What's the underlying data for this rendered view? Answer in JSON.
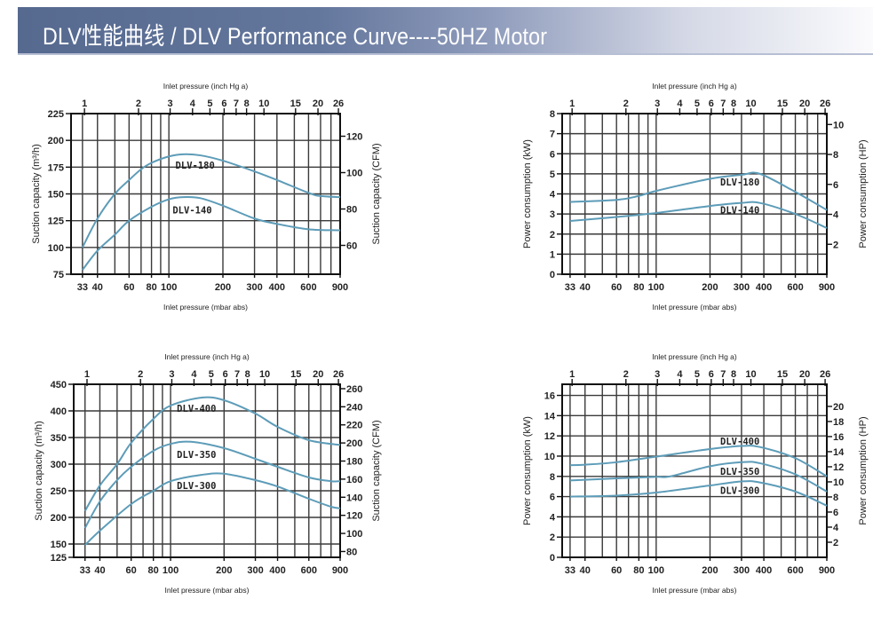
{
  "header": {
    "title": "DLV性能曲线 / DLV Performance Curve----50HZ Motor"
  },
  "colors": {
    "curve": "#5d9cb8",
    "grid": "#3a3a3a",
    "frame": "#111111",
    "banner": "#5a6d94"
  },
  "chart_data": [
    {
      "id": "capacity-small",
      "type": "line",
      "xscale": "log",
      "xlim": [
        28.5,
        900
      ],
      "ylim": [
        75,
        225
      ],
      "xlabel": "Inlet pressure (mbar abs)",
      "x2label": "Inlet pressure (inch Hg a)",
      "ylabel": "Suction capacity (m³/h)",
      "y2label": "Suction capacity (CFM)",
      "xticks": [
        "33",
        "40",
        "60",
        "80",
        "100",
        "200",
        "300",
        "400",
        "600",
        "900"
      ],
      "x2ticks": [
        "1",
        "2",
        "3",
        "4",
        "5",
        "6",
        "7",
        "8",
        "10",
        "15",
        "20",
        "26"
      ],
      "yticks": [
        "75",
        "100",
        "125",
        "150",
        "175",
        "200",
        "225"
      ],
      "y2ticks": [
        "60",
        "80",
        "100",
        "120"
      ],
      "y2factor": 0.5886,
      "grid": true,
      "series": [
        {
          "name": "DLV-180",
          "label_at": [
            140,
            177
          ],
          "x": [
            33,
            40,
            50,
            60,
            70,
            80,
            100,
            120,
            150,
            200,
            300,
            400,
            600,
            700,
            900
          ],
          "y": [
            100,
            127,
            150,
            163,
            173,
            179,
            185,
            187,
            186,
            181,
            171,
            163,
            151,
            148,
            147
          ]
        },
        {
          "name": "DLV-140",
          "label_at": [
            135,
            135
          ],
          "x": [
            33,
            40,
            50,
            60,
            80,
            100,
            120,
            150,
            200,
            300,
            400,
            600,
            900
          ],
          "y": [
            79,
            97,
            112,
            125,
            138,
            145,
            147,
            146,
            139,
            127,
            122,
            117,
            116
          ]
        }
      ]
    },
    {
      "id": "power-small",
      "type": "line",
      "xscale": "log",
      "xlim": [
        29.8,
        900
      ],
      "ylim": [
        0,
        8
      ],
      "xlabel": "Inlet pressure (mbar abs)",
      "x2label": "Inlet pressure (inch Hg a)",
      "ylabel": "Power consumption (kW)",
      "y2label": "Power consumption (HP)",
      "xticks": [
        "33",
        "40",
        "60",
        "80",
        "100",
        "200",
        "300",
        "400",
        "600",
        "900"
      ],
      "x2ticks": [
        "1",
        "2",
        "3",
        "4",
        "5",
        "6",
        "7",
        "8",
        "10",
        "15",
        "20",
        "26"
      ],
      "yticks": [
        "0",
        "1",
        "2",
        "3",
        "4",
        "5",
        "6",
        "7",
        "8"
      ],
      "y2ticks": [
        "2",
        "4",
        "6",
        "8",
        "10"
      ],
      "y2factor": 1.341,
      "grid": true,
      "series": [
        {
          "name": "DLV-180",
          "label_at": [
            294,
            4.6
          ],
          "x": [
            33,
            60,
            80,
            100,
            200,
            300,
            380,
            600,
            900
          ],
          "y": [
            3.6,
            3.7,
            3.9,
            4.15,
            4.75,
            4.95,
            5.0,
            4.1,
            3.2
          ]
        },
        {
          "name": "DLV-140",
          "label_at": [
            294,
            3.2
          ],
          "x": [
            33,
            60,
            100,
            200,
            300,
            380,
            600,
            900
          ],
          "y": [
            2.65,
            2.85,
            3.05,
            3.4,
            3.55,
            3.55,
            3.0,
            2.3
          ]
        }
      ]
    },
    {
      "id": "capacity-large",
      "type": "line",
      "xscale": "log",
      "xlim": [
        28.5,
        900
      ],
      "ylim": [
        125,
        450
      ],
      "xlabel": "Inlet pressure (mbar abs)",
      "x2label": "Inlet pressure (inch Hg a)",
      "ylabel": "Suction capacity (m³/h)",
      "y2label": "Suction capacity (CFM)",
      "xticks": [
        "33",
        "40",
        "60",
        "80",
        "100",
        "200",
        "300",
        "400",
        "600",
        "900"
      ],
      "x2ticks": [
        "1",
        "2",
        "3",
        "4",
        "5",
        "6",
        "7",
        "8",
        "10",
        "15",
        "20",
        "26"
      ],
      "yticks": [
        "125",
        "150",
        "200",
        "250",
        "300",
        "350",
        "400",
        "450"
      ],
      "y2ticks": [
        "80",
        "100",
        "120",
        "140",
        "160",
        "180",
        "200",
        "220",
        "240",
        "260"
      ],
      "y2factor": 0.5886,
      "grid": true,
      "series": [
        {
          "name": "DLV-400",
          "label_at": [
            140,
            405
          ],
          "x": [
            33,
            40,
            50,
            60,
            80,
            100,
            150,
            200,
            300,
            400,
            600,
            900
          ],
          "y": [
            212,
            260,
            300,
            340,
            385,
            410,
            425,
            420,
            395,
            370,
            345,
            336
          ]
        },
        {
          "name": "DLV-350",
          "label_at": [
            140,
            318
          ],
          "x": [
            33,
            40,
            50,
            60,
            80,
            100,
            130,
            200,
            300,
            400,
            600,
            800,
            900
          ],
          "y": [
            180,
            230,
            270,
            295,
            325,
            338,
            342,
            330,
            310,
            295,
            275,
            268,
            268
          ]
        },
        {
          "name": "DLV-300",
          "label_at": [
            140,
            260
          ],
          "x": [
            33,
            40,
            60,
            80,
            100,
            150,
            200,
            300,
            400,
            600,
            800,
            900
          ],
          "y": [
            148,
            175,
            225,
            250,
            268,
            280,
            282,
            270,
            258,
            235,
            220,
            217
          ]
        }
      ]
    },
    {
      "id": "power-large",
      "type": "line",
      "xscale": "log",
      "xlim": [
        29.8,
        900
      ],
      "ylim": [
        0,
        17.1
      ],
      "xlabel": "Inlet pressure (mbar abs)",
      "x2label": "Inlet pressure (inch Hg a)",
      "ylabel": "Power consumption (kW)",
      "y2label": "Power consumption (HP)",
      "xticks": [
        "33",
        "40",
        "60",
        "80",
        "100",
        "200",
        "300",
        "400",
        "600",
        "900"
      ],
      "x2ticks": [
        "1",
        "2",
        "3",
        "4",
        "5",
        "6",
        "7",
        "8",
        "10",
        "15",
        "20",
        "26"
      ],
      "yticks": [
        "0",
        "2",
        "4",
        "6",
        "8",
        "10",
        "12",
        "14",
        "16"
      ],
      "y2ticks": [
        "2",
        "4",
        "6",
        "8",
        "10",
        "12",
        "14",
        "16",
        "18",
        "20"
      ],
      "y2factor": 1.341,
      "grid": true,
      "series": [
        {
          "name": "DLV-400",
          "label_at": [
            294,
            11.5
          ],
          "x": [
            33,
            40,
            60,
            100,
            200,
            300,
            380,
            600,
            900
          ],
          "y": [
            9.1,
            9.15,
            9.4,
            9.95,
            10.7,
            11.0,
            10.9,
            9.8,
            8.0
          ]
        },
        {
          "name": "DLV-350",
          "label_at": [
            294,
            8.5
          ],
          "x": [
            33,
            60,
            100,
            120,
            200,
            300,
            380,
            600,
            900
          ],
          "y": [
            7.6,
            7.8,
            7.95,
            8.0,
            9.0,
            9.4,
            9.3,
            8.2,
            6.5
          ]
        },
        {
          "name": "DLV-300",
          "label_at": [
            294,
            6.6
          ],
          "x": [
            33,
            60,
            100,
            200,
            300,
            380,
            600,
            900
          ],
          "y": [
            6.0,
            6.1,
            6.4,
            7.1,
            7.5,
            7.4,
            6.5,
            5.1
          ]
        }
      ]
    }
  ]
}
